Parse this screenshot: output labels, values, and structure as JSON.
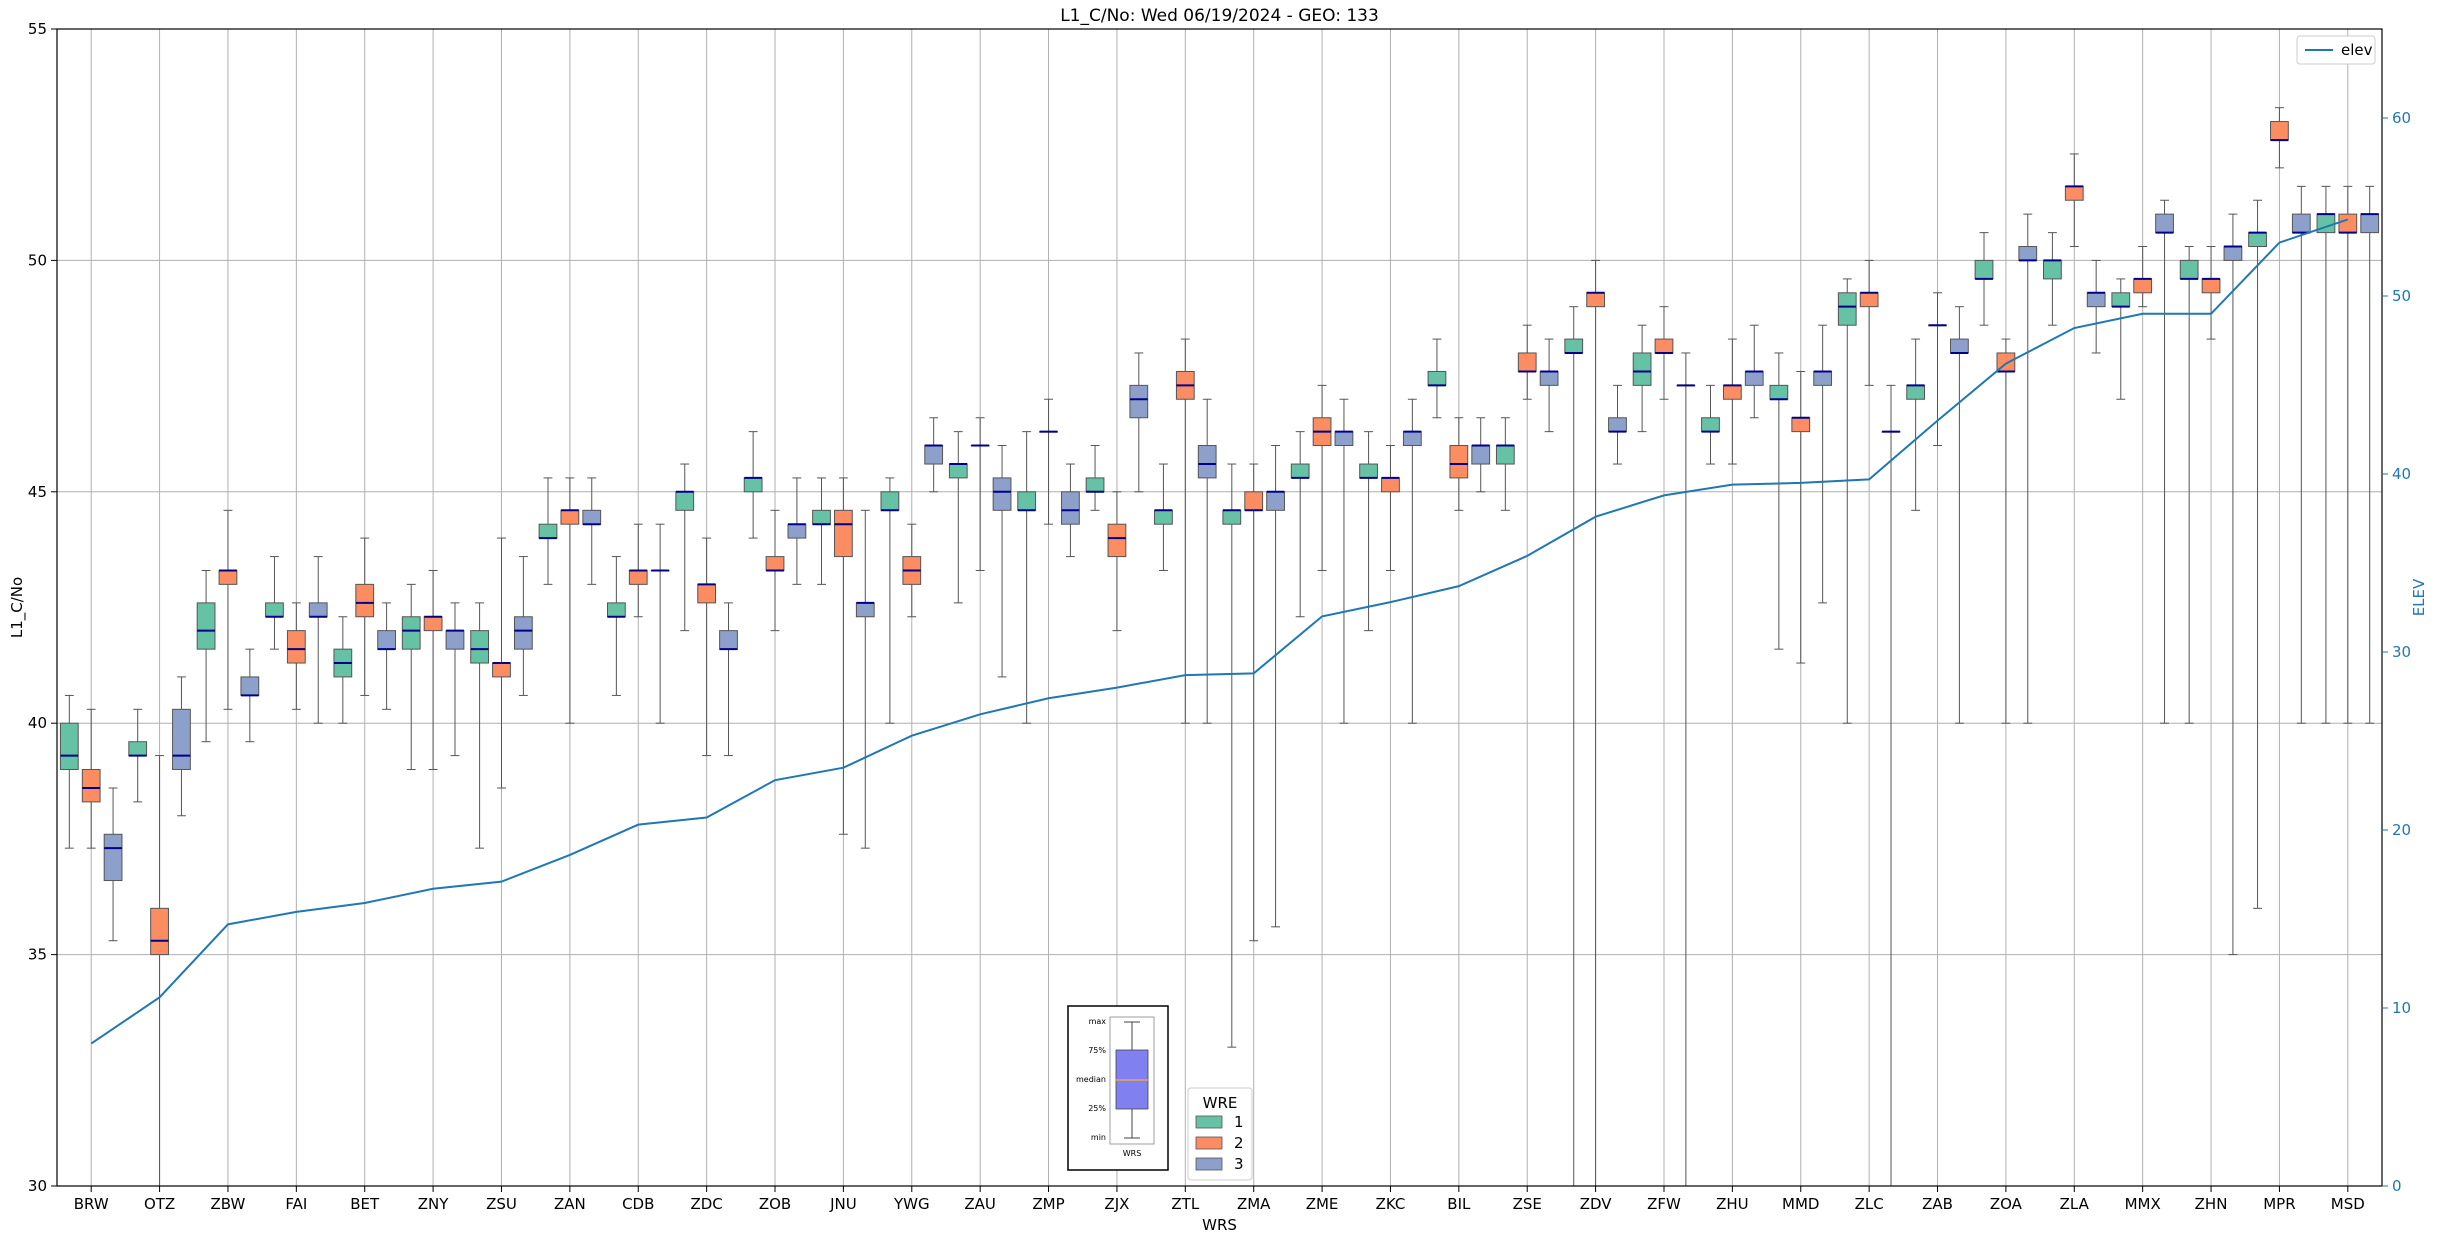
{
  "chart_data": {
    "type": "box",
    "title": "L1_C/No: Wed 06/19/2024 - GEO: 133",
    "xlabel": "WRS",
    "ylabel": "L1_C/No",
    "y2label": "ELEV",
    "ylim": [
      30,
      55
    ],
    "y2lim": [
      0,
      65
    ],
    "yticks": [
      30,
      35,
      40,
      45,
      50,
      55
    ],
    "y2ticks": [
      0,
      10,
      20,
      30,
      40,
      50,
      60
    ],
    "grid": true,
    "categories": [
      "BRW",
      "OTZ",
      "ZBW",
      "FAI",
      "BET",
      "ZNY",
      "ZSU",
      "ZAN",
      "CDB",
      "ZDC",
      "ZOB",
      "JNU",
      "YWG",
      "ZAU",
      "ZMP",
      "ZJX",
      "ZTL",
      "ZMA",
      "ZME",
      "ZKC",
      "BIL",
      "ZSE",
      "ZDV",
      "ZFW",
      "ZHU",
      "MMD",
      "ZLC",
      "ZAB",
      "ZOA",
      "ZLA",
      "MMX",
      "ZHN",
      "MPR",
      "MSD"
    ],
    "wre_legend": {
      "title": "WRE",
      "entries": [
        {
          "label": "1",
          "color": "#66c2a5"
        },
        {
          "label": "2",
          "color": "#fc8d62"
        },
        {
          "label": "3",
          "color": "#8da0cb"
        }
      ]
    },
    "elev_legend": {
      "label": "elev",
      "color": "#1f77b4"
    },
    "median_color": "#00008b",
    "key_box": {
      "labels": [
        "max",
        "75%",
        "median",
        "25%",
        "min"
      ],
      "xlabel": "WRS",
      "fill": "#8080f0"
    },
    "boxes": [
      {
        "cat": "BRW",
        "wre": 1,
        "min": 37.3,
        "q1": 39.0,
        "median": 39.3,
        "q3": 40.0,
        "max": 40.6
      },
      {
        "cat": "BRW",
        "wre": 2,
        "min": 37.3,
        "q1": 38.3,
        "median": 38.6,
        "q3": 39.0,
        "max": 40.3
      },
      {
        "cat": "BRW",
        "wre": 3,
        "min": 35.3,
        "q1": 36.6,
        "median": 37.3,
        "q3": 37.6,
        "max": 38.6
      },
      {
        "cat": "OTZ",
        "wre": 1,
        "min": 38.3,
        "q1": 39.3,
        "median": 39.3,
        "q3": 39.6,
        "max": 40.3
      },
      {
        "cat": "OTZ",
        "wre": 2,
        "min": 30.0,
        "q1": 35.0,
        "median": 35.3,
        "q3": 36.0,
        "max": 39.3
      },
      {
        "cat": "OTZ",
        "wre": 3,
        "min": 38.0,
        "q1": 39.0,
        "median": 39.3,
        "q3": 40.3,
        "max": 41.0
      },
      {
        "cat": "ZBW",
        "wre": 1,
        "min": 39.6,
        "q1": 41.6,
        "median": 42.0,
        "q3": 42.6,
        "max": 43.3
      },
      {
        "cat": "ZBW",
        "wre": 2,
        "min": 40.3,
        "q1": 43.0,
        "median": 43.3,
        "q3": 43.3,
        "max": 44.6
      },
      {
        "cat": "ZBW",
        "wre": 3,
        "min": 39.6,
        "q1": 40.6,
        "median": 40.6,
        "q3": 41.0,
        "max": 41.6
      },
      {
        "cat": "FAI",
        "wre": 1,
        "min": 41.6,
        "q1": 42.3,
        "median": 42.3,
        "q3": 42.6,
        "max": 43.6
      },
      {
        "cat": "FAI",
        "wre": 2,
        "min": 40.3,
        "q1": 41.3,
        "median": 41.6,
        "q3": 42.0,
        "max": 42.6
      },
      {
        "cat": "FAI",
        "wre": 3,
        "min": 40.0,
        "q1": 42.3,
        "median": 42.3,
        "q3": 42.6,
        "max": 43.6
      },
      {
        "cat": "BET",
        "wre": 1,
        "min": 40.0,
        "q1": 41.0,
        "median": 41.3,
        "q3": 41.6,
        "max": 42.3
      },
      {
        "cat": "BET",
        "wre": 2,
        "min": 40.6,
        "q1": 42.3,
        "median": 42.6,
        "q3": 43.0,
        "max": 44.0
      },
      {
        "cat": "BET",
        "wre": 3,
        "min": 40.3,
        "q1": 41.6,
        "median": 41.6,
        "q3": 42.0,
        "max": 42.6
      },
      {
        "cat": "ZNY",
        "wre": 1,
        "min": 39.0,
        "q1": 41.6,
        "median": 42.0,
        "q3": 42.3,
        "max": 43.0
      },
      {
        "cat": "ZNY",
        "wre": 2,
        "min": 39.0,
        "q1": 42.0,
        "median": 42.3,
        "q3": 42.3,
        "max": 43.3
      },
      {
        "cat": "ZNY",
        "wre": 3,
        "min": 39.3,
        "q1": 41.6,
        "median": 42.0,
        "q3": 42.0,
        "max": 42.6
      },
      {
        "cat": "ZSU",
        "wre": 1,
        "min": 37.3,
        "q1": 41.3,
        "median": 41.6,
        "q3": 42.0,
        "max": 42.6
      },
      {
        "cat": "ZSU",
        "wre": 2,
        "min": 38.6,
        "q1": 41.0,
        "median": 41.3,
        "q3": 41.3,
        "max": 44.0
      },
      {
        "cat": "ZSU",
        "wre": 3,
        "min": 40.6,
        "q1": 41.6,
        "median": 42.0,
        "q3": 42.3,
        "max": 43.6
      },
      {
        "cat": "ZAN",
        "wre": 1,
        "min": 43.0,
        "q1": 44.0,
        "median": 44.0,
        "q3": 44.3,
        "max": 45.3
      },
      {
        "cat": "ZAN",
        "wre": 2,
        "min": 40.0,
        "q1": 44.3,
        "median": 44.6,
        "q3": 44.6,
        "max": 45.3
      },
      {
        "cat": "ZAN",
        "wre": 3,
        "min": 43.0,
        "q1": 44.3,
        "median": 44.3,
        "q3": 44.6,
        "max": 45.3
      },
      {
        "cat": "CDB",
        "wre": 1,
        "min": 40.6,
        "q1": 42.3,
        "median": 42.3,
        "q3": 42.6,
        "max": 43.6
      },
      {
        "cat": "CDB",
        "wre": 2,
        "min": 42.3,
        "q1": 43.0,
        "median": 43.3,
        "q3": 43.3,
        "max": 44.3
      },
      {
        "cat": "CDB",
        "wre": 3,
        "min": 40.0,
        "q1": 43.3,
        "median": 43.3,
        "q3": 43.3,
        "max": 44.3
      },
      {
        "cat": "ZDC",
        "wre": 1,
        "min": 42.0,
        "q1": 44.6,
        "median": 45.0,
        "q3": 45.0,
        "max": 45.6
      },
      {
        "cat": "ZDC",
        "wre": 2,
        "min": 39.3,
        "q1": 42.6,
        "median": 43.0,
        "q3": 43.0,
        "max": 44.0
      },
      {
        "cat": "ZDC",
        "wre": 3,
        "min": 39.3,
        "q1": 41.6,
        "median": 41.6,
        "q3": 42.0,
        "max": 42.6
      },
      {
        "cat": "ZOB",
        "wre": 1,
        "min": 44.0,
        "q1": 45.0,
        "median": 45.3,
        "q3": 45.3,
        "max": 46.3
      },
      {
        "cat": "ZOB",
        "wre": 2,
        "min": 42.0,
        "q1": 43.3,
        "median": 43.3,
        "q3": 43.6,
        "max": 44.6
      },
      {
        "cat": "ZOB",
        "wre": 3,
        "min": 43.0,
        "q1": 44.0,
        "median": 44.3,
        "q3": 44.3,
        "max": 45.3
      },
      {
        "cat": "JNU",
        "wre": 1,
        "min": 43.0,
        "q1": 44.3,
        "median": 44.3,
        "q3": 44.6,
        "max": 45.3
      },
      {
        "cat": "JNU",
        "wre": 2,
        "min": 37.6,
        "q1": 43.6,
        "median": 44.3,
        "q3": 44.6,
        "max": 45.3
      },
      {
        "cat": "JNU",
        "wre": 3,
        "min": 37.3,
        "q1": 42.3,
        "median": 42.6,
        "q3": 42.6,
        "max": 44.6
      },
      {
        "cat": "YWG",
        "wre": 1,
        "min": 40.0,
        "q1": 44.6,
        "median": 44.6,
        "q3": 45.0,
        "max": 45.3
      },
      {
        "cat": "YWG",
        "wre": 2,
        "min": 42.3,
        "q1": 43.0,
        "median": 43.3,
        "q3": 43.6,
        "max": 44.3
      },
      {
        "cat": "YWG",
        "wre": 3,
        "min": 45.0,
        "q1": 45.6,
        "median": 46.0,
        "q3": 46.0,
        "max": 46.6
      },
      {
        "cat": "ZAU",
        "wre": 1,
        "min": 42.6,
        "q1": 45.3,
        "median": 45.6,
        "q3": 45.6,
        "max": 46.3
      },
      {
        "cat": "ZAU",
        "wre": 2,
        "min": 43.3,
        "q1": 46.0,
        "median": 46.0,
        "q3": 46.0,
        "max": 46.6
      },
      {
        "cat": "ZAU",
        "wre": 3,
        "min": 41.0,
        "q1": 44.6,
        "median": 45.0,
        "q3": 45.3,
        "max": 46.0
      },
      {
        "cat": "ZMP",
        "wre": 1,
        "min": 40.0,
        "q1": 44.6,
        "median": 44.6,
        "q3": 45.0,
        "max": 46.3
      },
      {
        "cat": "ZMP",
        "wre": 2,
        "min": 44.3,
        "q1": 46.3,
        "median": 46.3,
        "q3": 46.3,
        "max": 47.0
      },
      {
        "cat": "ZMP",
        "wre": 3,
        "min": 43.6,
        "q1": 44.3,
        "median": 44.6,
        "q3": 45.0,
        "max": 45.6
      },
      {
        "cat": "ZJX",
        "wre": 1,
        "min": 44.6,
        "q1": 45.0,
        "median": 45.0,
        "q3": 45.3,
        "max": 46.0
      },
      {
        "cat": "ZJX",
        "wre": 2,
        "min": 42.0,
        "q1": 43.6,
        "median": 44.0,
        "q3": 44.3,
        "max": 45.0
      },
      {
        "cat": "ZJX",
        "wre": 3,
        "min": 45.0,
        "q1": 46.6,
        "median": 47.0,
        "q3": 47.3,
        "max": 48.0
      },
      {
        "cat": "ZTL",
        "wre": 1,
        "min": 43.3,
        "q1": 44.3,
        "median": 44.6,
        "q3": 44.6,
        "max": 45.6
      },
      {
        "cat": "ZTL",
        "wre": 2,
        "min": 40.0,
        "q1": 47.0,
        "median": 47.3,
        "q3": 47.6,
        "max": 48.3
      },
      {
        "cat": "ZTL",
        "wre": 3,
        "min": 40.0,
        "q1": 45.3,
        "median": 45.6,
        "q3": 46.0,
        "max": 47.0
      },
      {
        "cat": "ZMA",
        "wre": 1,
        "min": 33.0,
        "q1": 44.3,
        "median": 44.6,
        "q3": 44.6,
        "max": 45.6
      },
      {
        "cat": "ZMA",
        "wre": 2,
        "min": 35.3,
        "q1": 44.6,
        "median": 44.6,
        "q3": 45.0,
        "max": 45.6
      },
      {
        "cat": "ZMA",
        "wre": 3,
        "min": 35.6,
        "q1": 44.6,
        "median": 45.0,
        "q3": 45.0,
        "max": 46.0
      },
      {
        "cat": "ZME",
        "wre": 1,
        "min": 42.3,
        "q1": 45.3,
        "median": 45.3,
        "q3": 45.6,
        "max": 46.3
      },
      {
        "cat": "ZME",
        "wre": 2,
        "min": 43.3,
        "q1": 46.0,
        "median": 46.3,
        "q3": 46.6,
        "max": 47.3
      },
      {
        "cat": "ZME",
        "wre": 3,
        "min": 40.0,
        "q1": 46.0,
        "median": 46.3,
        "q3": 46.3,
        "max": 47.0
      },
      {
        "cat": "ZKC",
        "wre": 1,
        "min": 42.0,
        "q1": 45.3,
        "median": 45.3,
        "q3": 45.6,
        "max": 46.3
      },
      {
        "cat": "ZKC",
        "wre": 2,
        "min": 43.3,
        "q1": 45.0,
        "median": 45.3,
        "q3": 45.3,
        "max": 46.0
      },
      {
        "cat": "ZKC",
        "wre": 3,
        "min": 40.0,
        "q1": 46.0,
        "median": 46.3,
        "q3": 46.3,
        "max": 47.0
      },
      {
        "cat": "BIL",
        "wre": 1,
        "min": 46.6,
        "q1": 47.3,
        "median": 47.3,
        "q3": 47.6,
        "max": 48.3
      },
      {
        "cat": "BIL",
        "wre": 2,
        "min": 44.6,
        "q1": 45.3,
        "median": 45.6,
        "q3": 46.0,
        "max": 46.6
      },
      {
        "cat": "BIL",
        "wre": 3,
        "min": 45.0,
        "q1": 45.6,
        "median": 46.0,
        "q3": 46.0,
        "max": 46.6
      },
      {
        "cat": "ZSE",
        "wre": 1,
        "min": 44.6,
        "q1": 45.6,
        "median": 46.0,
        "q3": 46.0,
        "max": 46.6
      },
      {
        "cat": "ZSE",
        "wre": 2,
        "min": 47.0,
        "q1": 47.6,
        "median": 47.6,
        "q3": 48.0,
        "max": 48.6
      },
      {
        "cat": "ZSE",
        "wre": 3,
        "min": 46.3,
        "q1": 47.3,
        "median": 47.6,
        "q3": 47.6,
        "max": 48.3
      },
      {
        "cat": "ZDV",
        "wre": 1,
        "min": 30.0,
        "q1": 48.0,
        "median": 48.0,
        "q3": 48.3,
        "max": 49.0
      },
      {
        "cat": "ZDV",
        "wre": 2,
        "min": 30.0,
        "q1": 49.0,
        "median": 49.3,
        "q3": 49.3,
        "max": 50.0
      },
      {
        "cat": "ZDV",
        "wre": 3,
        "min": 45.6,
        "q1": 46.3,
        "median": 46.3,
        "q3": 46.6,
        "max": 47.3
      },
      {
        "cat": "ZFW",
        "wre": 1,
        "min": 46.3,
        "q1": 47.3,
        "median": 47.6,
        "q3": 48.0,
        "max": 48.6
      },
      {
        "cat": "ZFW",
        "wre": 2,
        "min": 47.0,
        "q1": 48.0,
        "median": 48.0,
        "q3": 48.3,
        "max": 49.0
      },
      {
        "cat": "ZFW",
        "wre": 3,
        "min": 30.0,
        "q1": 47.3,
        "median": 47.3,
        "q3": 47.3,
        "max": 48.0
      },
      {
        "cat": "ZHU",
        "wre": 1,
        "min": 45.6,
        "q1": 46.3,
        "median": 46.3,
        "q3": 46.6,
        "max": 47.3
      },
      {
        "cat": "ZHU",
        "wre": 2,
        "min": 45.6,
        "q1": 47.0,
        "median": 47.3,
        "q3": 47.3,
        "max": 48.3
      },
      {
        "cat": "ZHU",
        "wre": 3,
        "min": 46.6,
        "q1": 47.3,
        "median": 47.6,
        "q3": 47.6,
        "max": 48.6
      },
      {
        "cat": "MMD",
        "wre": 1,
        "min": 41.6,
        "q1": 47.0,
        "median": 47.0,
        "q3": 47.3,
        "max": 48.0
      },
      {
        "cat": "MMD",
        "wre": 2,
        "min": 41.3,
        "q1": 46.3,
        "median": 46.6,
        "q3": 46.6,
        "max": 47.6
      },
      {
        "cat": "MMD",
        "wre": 3,
        "min": 42.6,
        "q1": 47.3,
        "median": 47.6,
        "q3": 47.6,
        "max": 48.6
      },
      {
        "cat": "ZLC",
        "wre": 1,
        "min": 40.0,
        "q1": 48.6,
        "median": 49.0,
        "q3": 49.3,
        "max": 49.6
      },
      {
        "cat": "ZLC",
        "wre": 2,
        "min": 47.3,
        "q1": 49.0,
        "median": 49.3,
        "q3": 49.3,
        "max": 50.0
      },
      {
        "cat": "ZLC",
        "wre": 3,
        "min": 30.0,
        "q1": 46.3,
        "median": 46.3,
        "q3": 46.3,
        "max": 47.3
      },
      {
        "cat": "ZAB",
        "wre": 1,
        "min": 44.6,
        "q1": 47.0,
        "median": 47.3,
        "q3": 47.3,
        "max": 48.3
      },
      {
        "cat": "ZAB",
        "wre": 2,
        "min": 46.0,
        "q1": 48.6,
        "median": 48.6,
        "q3": 48.6,
        "max": 49.3
      },
      {
        "cat": "ZAB",
        "wre": 3,
        "min": 40.0,
        "q1": 48.0,
        "median": 48.0,
        "q3": 48.3,
        "max": 49.0
      },
      {
        "cat": "ZOA",
        "wre": 1,
        "min": 48.6,
        "q1": 49.6,
        "median": 49.6,
        "q3": 50.0,
        "max": 50.6
      },
      {
        "cat": "ZOA",
        "wre": 2,
        "min": 40.0,
        "q1": 47.6,
        "median": 47.6,
        "q3": 48.0,
        "max": 48.3
      },
      {
        "cat": "ZOA",
        "wre": 3,
        "min": 40.0,
        "q1": 50.0,
        "median": 50.0,
        "q3": 50.3,
        "max": 51.0
      },
      {
        "cat": "ZLA",
        "wre": 1,
        "min": 48.6,
        "q1": 49.6,
        "median": 50.0,
        "q3": 50.0,
        "max": 50.6
      },
      {
        "cat": "ZLA",
        "wre": 2,
        "min": 50.3,
        "q1": 51.3,
        "median": 51.6,
        "q3": 51.6,
        "max": 52.3
      },
      {
        "cat": "ZLA",
        "wre": 3,
        "min": 48.0,
        "q1": 49.0,
        "median": 49.3,
        "q3": 49.3,
        "max": 50.0
      },
      {
        "cat": "MMX",
        "wre": 1,
        "min": 47.0,
        "q1": 49.0,
        "median": 49.0,
        "q3": 49.3,
        "max": 49.6
      },
      {
        "cat": "MMX",
        "wre": 2,
        "min": 49.0,
        "q1": 49.3,
        "median": 49.6,
        "q3": 49.6,
        "max": 50.3
      },
      {
        "cat": "MMX",
        "wre": 3,
        "min": 40.0,
        "q1": 50.6,
        "median": 50.6,
        "q3": 51.0,
        "max": 51.3
      },
      {
        "cat": "ZHN",
        "wre": 1,
        "min": 40.0,
        "q1": 49.6,
        "median": 49.6,
        "q3": 50.0,
        "max": 50.3
      },
      {
        "cat": "ZHN",
        "wre": 2,
        "min": 48.3,
        "q1": 49.3,
        "median": 49.6,
        "q3": 49.6,
        "max": 50.3
      },
      {
        "cat": "ZHN",
        "wre": 3,
        "min": 35.0,
        "q1": 50.0,
        "median": 50.3,
        "q3": 50.3,
        "max": 51.0
      },
      {
        "cat": "MPR",
        "wre": 1,
        "min": 36.0,
        "q1": 50.3,
        "median": 50.6,
        "q3": 50.6,
        "max": 51.3
      },
      {
        "cat": "MPR",
        "wre": 2,
        "min": 52.0,
        "q1": 52.6,
        "median": 52.6,
        "q3": 53.0,
        "max": 53.3
      },
      {
        "cat": "MPR",
        "wre": 3,
        "min": 40.0,
        "q1": 50.6,
        "median": 50.6,
        "q3": 51.0,
        "max": 51.6
      },
      {
        "cat": "MSD",
        "wre": 1,
        "min": 40.0,
        "q1": 50.6,
        "median": 51.0,
        "q3": 51.0,
        "max": 51.6
      },
      {
        "cat": "MSD",
        "wre": 2,
        "min": 40.0,
        "q1": 50.6,
        "median": 50.6,
        "q3": 51.0,
        "max": 51.6
      },
      {
        "cat": "MSD",
        "wre": 3,
        "min": 40.0,
        "q1": 50.6,
        "median": 51.0,
        "q3": 51.0,
        "max": 51.6
      }
    ],
    "elev": [
      8.0,
      10.6,
      14.7,
      15.4,
      15.9,
      16.7,
      17.1,
      18.6,
      20.3,
      20.7,
      22.8,
      23.5,
      25.3,
      26.5,
      27.4,
      28.0,
      28.7,
      28.8,
      32.0,
      32.8,
      33.7,
      35.4,
      37.6,
      38.8,
      39.4,
      39.5,
      39.7,
      43.0,
      46.2,
      48.2,
      49.0,
      49.0,
      53.0,
      54.3
    ]
  }
}
